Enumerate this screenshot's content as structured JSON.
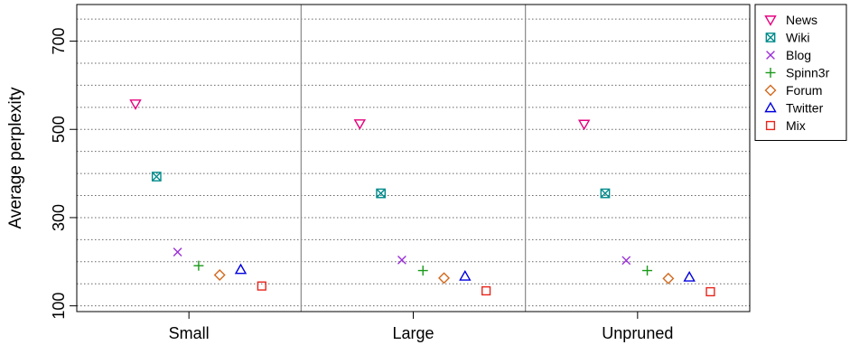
{
  "chart_data": {
    "type": "scatter",
    "title": "",
    "xlabel": "",
    "ylabel": "Average perplexity",
    "ylim": [
      87,
      783
    ],
    "yticks": [
      100,
      300,
      500,
      700
    ],
    "ygrid_step": 50,
    "grid": true,
    "legend_position": "right",
    "categories": [
      "Small",
      "Large",
      "Unpruned"
    ],
    "series": [
      {
        "name": "News",
        "marker": "triangle-down",
        "color": "#e6007e",
        "values": [
          558,
          513,
          512
        ]
      },
      {
        "name": "Wiki",
        "marker": "square-x",
        "color": "#008b8b",
        "values": [
          393,
          355,
          355
        ]
      },
      {
        "name": "Blog",
        "marker": "x",
        "color": "#9b30d9",
        "values": [
          222,
          204,
          203
        ]
      },
      {
        "name": "Spinn3r",
        "marker": "plus",
        "color": "#1a9a1a",
        "values": [
          191,
          180,
          180
        ]
      },
      {
        "name": "Forum",
        "marker": "diamond",
        "color": "#d2691e",
        "values": [
          170,
          163,
          162
        ]
      },
      {
        "name": "Twitter",
        "marker": "triangle-up",
        "color": "#0000dd",
        "values": [
          182,
          167,
          165
        ]
      },
      {
        "name": "Mix",
        "marker": "square",
        "color": "#e8251c",
        "values": [
          145,
          134,
          132
        ]
      }
    ]
  }
}
